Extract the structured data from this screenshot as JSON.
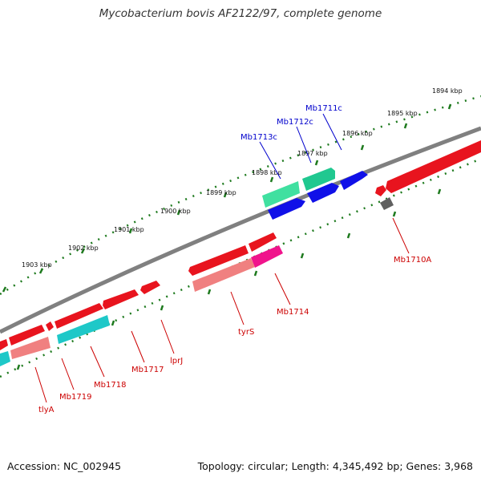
{
  "title": "Mycobacterium bovis AF2122/97, complete genome",
  "footer": {
    "accession": "Accession: NC_002945",
    "topology": "Topology: circular; Length: 4,345,492 bp; Genes: 3,968"
  },
  "colors": {
    "backbone": "#808080",
    "scale_dots": "#1e7a1e",
    "forward_gene": "#e8141e",
    "reverse_gene": "#1010e8",
    "forward_cds": "#f08080",
    "reverse_cds": "#1ec8c8",
    "label_forward": "#cc0000",
    "label_reverse": "#0000cc"
  },
  "scale": {
    "unit": "kbp",
    "ticks": [
      "1894 kbp",
      "1895 kbp",
      "1896 kbp",
      "1897 kbp",
      "1898 kbp",
      "1899 kbp",
      "1900 kbp",
      "1901 kbp",
      "1902 kbp",
      "1903 kbp"
    ]
  },
  "reverse_labels": [
    "Mb1711c",
    "Mb1712c",
    "Mb1713c"
  ],
  "forward_labels": [
    "Mb1710A",
    "Mb1714",
    "tyrS",
    "lprJ",
    "Mb1717",
    "Mb1718",
    "Mb1719",
    "tlyA"
  ]
}
